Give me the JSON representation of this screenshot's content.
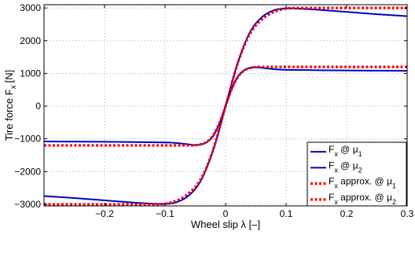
{
  "chart_data": {
    "type": "line",
    "title": "",
    "xlabel": "Wheel slip λ [–]",
    "ylabel": "Tire force F",
    "ylabel_subscript": "x",
    "ylabel_unit": "[N]",
    "xlim": [
      -0.3,
      0.3
    ],
    "ylim": [
      -3050,
      3100
    ],
    "xticks": [
      -0.2,
      -0.1,
      0,
      0.1,
      0.2,
      0.3
    ],
    "xtick_labels": [
      "−0.2",
      "−0.1",
      "0",
      "0.1",
      "0.2",
      "0.3"
    ],
    "yticks": [
      -3000,
      -2000,
      -1000,
      0,
      1000,
      2000,
      3000
    ],
    "ytick_labels": [
      "−3000",
      "−2000",
      "−1000",
      "0",
      "1000",
      "2000",
      "3000"
    ],
    "grid": true,
    "legend_position": "bottom-right",
    "colors": {
      "exact": "#0000cc",
      "approx": "#ff0000"
    },
    "series": [
      {
        "name": "F_x @ μ_1",
        "legend": {
          "main": "F",
          "sub": "x",
          "mid": " @ μ",
          "sub2": "1"
        },
        "style": "solid",
        "x": [
          -0.3,
          -0.25,
          -0.2,
          -0.15,
          -0.12,
          -0.1,
          -0.08,
          -0.06,
          -0.04,
          -0.02,
          0,
          0.02,
          0.04,
          0.06,
          0.08,
          0.1,
          0.12,
          0.15,
          0.2,
          0.25,
          0.3
        ],
        "y": [
          -2750,
          -2810,
          -2880,
          -2950,
          -2980,
          -2990,
          -2930,
          -2720,
          -2250,
          -1320,
          0,
          1320,
          2250,
          2720,
          2930,
          2990,
          2980,
          2950,
          2880,
          2810,
          2750
        ]
      },
      {
        "name": "F_x @ μ_2",
        "legend": {
          "main": "F",
          "sub": "x",
          "mid": " @ μ",
          "sub2": "2"
        },
        "style": "solid",
        "x": [
          -0.3,
          -0.2,
          -0.1,
          -0.07,
          -0.05,
          -0.04,
          -0.03,
          -0.02,
          -0.01,
          0,
          0.01,
          0.02,
          0.03,
          0.04,
          0.05,
          0.07,
          0.1,
          0.2,
          0.3
        ],
        "y": [
          -1080,
          -1090,
          -1110,
          -1150,
          -1190,
          -1170,
          -1090,
          -900,
          -520,
          0,
          520,
          900,
          1090,
          1170,
          1190,
          1150,
          1110,
          1090,
          1080
        ]
      },
      {
        "name": "F_x approx. @ μ_1",
        "legend": {
          "main": "F",
          "sub": "x",
          "mid": " approx. @ μ",
          "sub2": "1"
        },
        "style": "dotted",
        "x": [
          -0.3,
          -0.2,
          -0.15,
          -0.12,
          -0.1,
          -0.08,
          -0.06,
          -0.04,
          -0.02,
          0,
          0.02,
          0.04,
          0.06,
          0.08,
          0.1,
          0.12,
          0.15,
          0.2,
          0.3
        ],
        "y": [
          -3000,
          -3000,
          -3000,
          -3000,
          -2980,
          -2880,
          -2650,
          -2200,
          -1300,
          0,
          1300,
          2200,
          2650,
          2880,
          2980,
          3000,
          3000,
          3000,
          3000
        ]
      },
      {
        "name": "F_x approx. @ μ_2",
        "legend": {
          "main": "F",
          "sub": "x",
          "mid": " approx. @ μ",
          "sub2": "2"
        },
        "style": "dotted",
        "x": [
          -0.3,
          -0.2,
          -0.1,
          -0.06,
          -0.05,
          -0.04,
          -0.03,
          -0.02,
          -0.01,
          0,
          0.01,
          0.02,
          0.03,
          0.04,
          0.05,
          0.06,
          0.1,
          0.2,
          0.3
        ],
        "y": [
          -1200,
          -1200,
          -1200,
          -1200,
          -1195,
          -1160,
          -1080,
          -880,
          -510,
          0,
          510,
          880,
          1080,
          1160,
          1195,
          1200,
          1200,
          1200,
          1200
        ]
      }
    ]
  }
}
